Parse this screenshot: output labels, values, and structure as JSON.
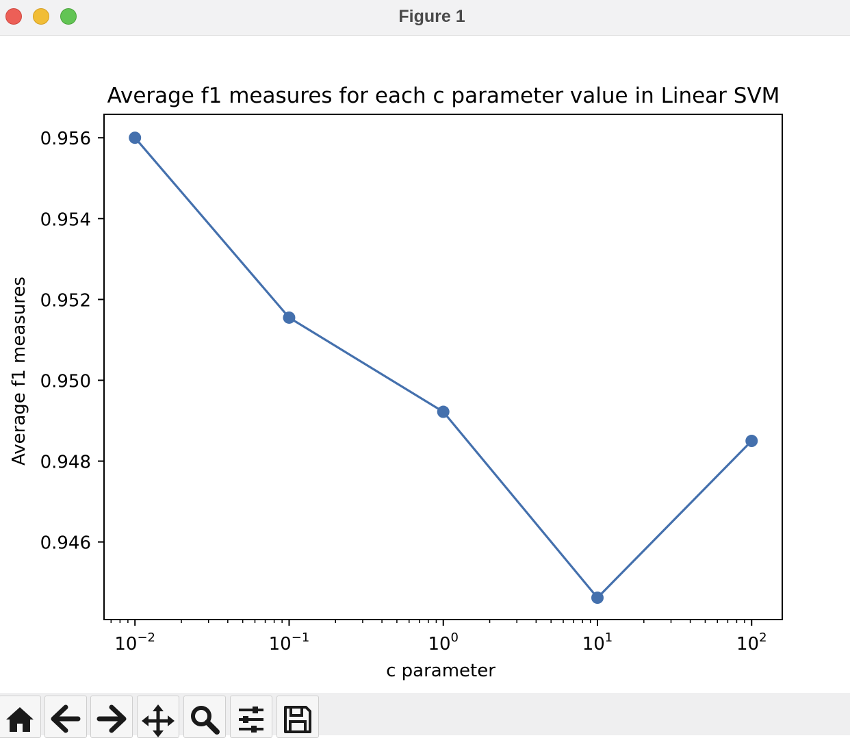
{
  "window": {
    "title": "Figure 1"
  },
  "chart_data": {
    "type": "line",
    "title": "Average f1 measures for each c parameter value in Linear SVM",
    "xlabel": "c parameter",
    "ylabel": "Average f1 measures",
    "xscale": "log",
    "x": [
      0.01,
      0.1,
      1,
      10,
      100
    ],
    "y": [
      0.956,
      0.95155,
      0.94922,
      0.94462,
      0.9485
    ],
    "xlim": [
      0.0063,
      158
    ],
    "ylim": [
      0.94408,
      0.95658
    ],
    "xticks": [
      {
        "value": 0.01,
        "base": "10",
        "exp": "−2"
      },
      {
        "value": 0.1,
        "base": "10",
        "exp": "−1"
      },
      {
        "value": 1,
        "base": "10",
        "exp": "0"
      },
      {
        "value": 10,
        "base": "10",
        "exp": "1"
      },
      {
        "value": 100,
        "base": "10",
        "exp": "2"
      }
    ],
    "yticks": [
      {
        "value": 0.946,
        "label": "0.946"
      },
      {
        "value": 0.948,
        "label": "0.948"
      },
      {
        "value": 0.95,
        "label": "0.950"
      },
      {
        "value": 0.952,
        "label": "0.952"
      },
      {
        "value": 0.954,
        "label": "0.954"
      },
      {
        "value": 0.956,
        "label": "0.956"
      }
    ],
    "marker": "circle",
    "line_color": "#4470ad",
    "grid": false,
    "legend": "none"
  },
  "toolbar": {
    "buttons": [
      "home-icon",
      "back-arrow-icon",
      "forward-arrow-icon",
      "pan-icon",
      "zoom-icon",
      "configure-subplots-icon",
      "save-icon"
    ]
  }
}
